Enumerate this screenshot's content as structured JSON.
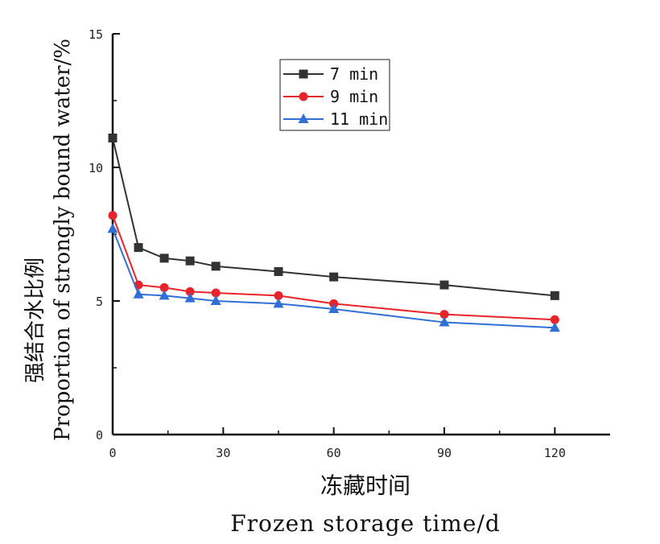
{
  "chart_data": {
    "type": "line",
    "xlabel_cn": "冻藏时间",
    "xlabel_en": "Frozen storage time/d",
    "ylabel_cn": "强结合水比例",
    "ylabel_en": "Proportion of strongly bound water/%",
    "xlim": [
      0,
      135
    ],
    "ylim": [
      0,
      15
    ],
    "x_ticks": [
      0,
      30,
      60,
      90,
      120
    ],
    "y_ticks": [
      0,
      5,
      10,
      15
    ],
    "grid": false,
    "legend_position": "top-center",
    "x": [
      0,
      7,
      14,
      21,
      28,
      45,
      60,
      90,
      120
    ],
    "series": [
      {
        "name": "7 min",
        "color": "#333333",
        "marker": "square",
        "values": [
          11.1,
          7.0,
          6.6,
          6.5,
          6.3,
          6.1,
          5.9,
          5.6,
          5.2
        ]
      },
      {
        "name": "9 min",
        "color": "#e8232a",
        "marker": "circle",
        "values": [
          8.2,
          5.6,
          5.5,
          5.35,
          5.3,
          5.2,
          4.9,
          4.5,
          4.3
        ]
      },
      {
        "name": "11 min",
        "color": "#2f6fd6",
        "marker": "triangle",
        "values": [
          7.7,
          5.25,
          5.2,
          5.1,
          5.0,
          4.9,
          4.7,
          4.2,
          4.0
        ]
      }
    ]
  }
}
